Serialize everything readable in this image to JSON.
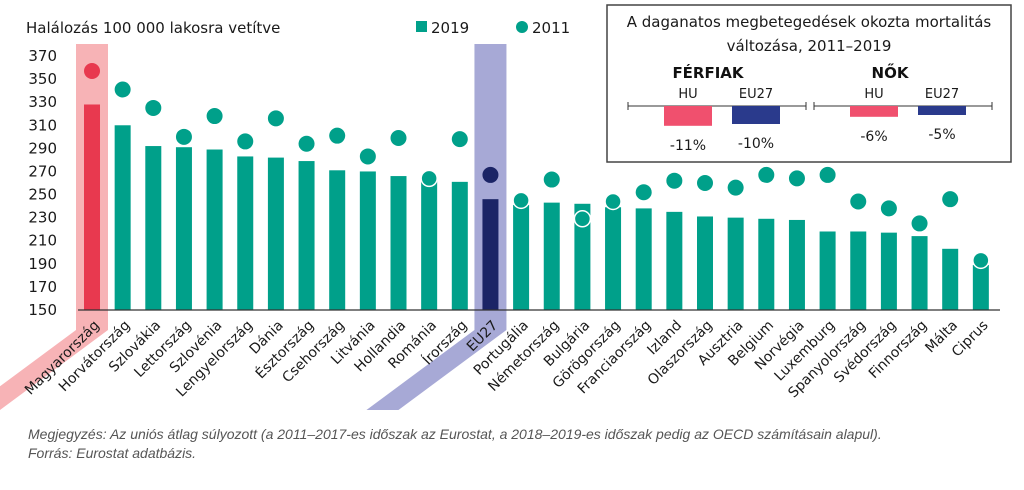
{
  "chart_data": {
    "type": "bar",
    "title": "",
    "ylabel": "Halálozás 100 000 lakosra vetítve",
    "xlabel": "",
    "ylim": [
      150,
      370
    ],
    "yticks": [
      150,
      170,
      190,
      210,
      230,
      250,
      270,
      290,
      310,
      330,
      350,
      370
    ],
    "grid": false,
    "legend_position": "top-center",
    "highlight": {
      "Magyarország": "#e8394f",
      "EU27": "#1b2466"
    },
    "highlight_band_colors": {
      "Magyarország": "#f7b3b6",
      "EU27": "#a7a9d6"
    },
    "colors": {
      "bar": "#00a08a",
      "dot": "#00a08a"
    },
    "categories": [
      "Magyarország",
      "Horvátország",
      "Szlovákia",
      "Lettország",
      "Szlovénia",
      "Lengyelország",
      "Dánia",
      "Észtország",
      "Csehország",
      "Litvánia",
      "Hollandia",
      "Románia",
      "Írország",
      "EU27",
      "Portugália",
      "Németország",
      "Bulgária",
      "Görögország",
      "Franciaország",
      "Izland",
      "Olaszország",
      "Ausztria",
      "Belgium",
      "Norvégia",
      "Luxemburg",
      "Spanyolország",
      "Svédország",
      "Finnország",
      "Málta",
      "Ciprus"
    ],
    "series": [
      {
        "name": "2019",
        "marker": "bar",
        "values": [
          328,
          310,
          292,
          291,
          289,
          283,
          282,
          279,
          271,
          270,
          266,
          262,
          261,
          246,
          241,
          243,
          242,
          239,
          238,
          235,
          231,
          230,
          229,
          228,
          218,
          218,
          217,
          214,
          203,
          189
        ]
      },
      {
        "name": "2011",
        "marker": "dot",
        "values": [
          357,
          341,
          325,
          300,
          318,
          296,
          316,
          294,
          301,
          283,
          299,
          264,
          298,
          267,
          245,
          263,
          229,
          244,
          252,
          262,
          260,
          256,
          267,
          264,
          267,
          244,
          238,
          225,
          246,
          193
        ]
      }
    ],
    "inset": {
      "type": "bar",
      "title_lines": [
        "A daganatos megbetegedések okozta mortalitás",
        "változása, 2011–2019"
      ],
      "groups": [
        {
          "name": "FÉRFIAK",
          "bars": [
            {
              "label": "HU",
              "value": -11,
              "value_label": "-11%",
              "color": "#f0506e"
            },
            {
              "label": "EU27",
              "value": -10,
              "value_label": "-10%",
              "color": "#2a3a8c"
            }
          ]
        },
        {
          "name": "NŐK",
          "bars": [
            {
              "label": "HU",
              "value": -6,
              "value_label": "-6%",
              "color": "#f0506e"
            },
            {
              "label": "EU27",
              "value": -5,
              "value_label": "-5%",
              "color": "#2a3a8c"
            }
          ]
        }
      ]
    }
  },
  "legend": {
    "items": [
      {
        "label": "2019",
        "shape": "square"
      },
      {
        "label": "2011",
        "shape": "circle"
      }
    ]
  },
  "notes": {
    "note": "Megjegyzés: Az uniós átlag súlyozott (a 2011–2017-es időszak az Eurostat, a 2018–2019-es időszak pedig az OECD számításain alapul).",
    "source": "Forrás: Eurostat adatbázis."
  }
}
